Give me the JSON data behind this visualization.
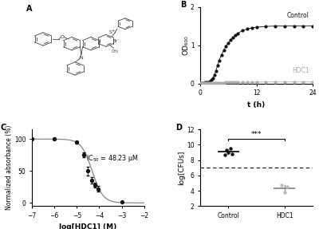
{
  "panelB": {
    "control_label": "Control",
    "hdc1_label": "HDC1",
    "xlabel": "t (h)",
    "ylabel": "OD₆₀₀",
    "xlim": [
      0,
      24
    ],
    "ylim": [
      0,
      2.0
    ],
    "yticks": [
      0.0,
      1.0,
      2.0
    ],
    "xticks": [
      0,
      12,
      24
    ],
    "control_color": "#111111",
    "hdc1_color": "#aaaaaa",
    "time_points": [
      0,
      0.33,
      0.66,
      1.0,
      1.33,
      1.66,
      2.0,
      2.33,
      2.66,
      3.0,
      3.33,
      3.66,
      4.0,
      4.5,
      5.0,
      5.5,
      6.0,
      6.5,
      7.0,
      7.5,
      8.0,
      9.0,
      10.0,
      11.0,
      12.0,
      14.0,
      16.0,
      18.0,
      20.0,
      22.0,
      24.0
    ],
    "control_od": [
      0.01,
      0.015,
      0.02,
      0.025,
      0.03,
      0.04,
      0.06,
      0.09,
      0.14,
      0.22,
      0.33,
      0.47,
      0.6,
      0.74,
      0.87,
      0.98,
      1.06,
      1.14,
      1.2,
      1.26,
      1.31,
      1.38,
      1.42,
      1.45,
      1.47,
      1.49,
      1.5,
      1.5,
      1.5,
      1.5,
      1.5
    ],
    "hdc1_od": [
      0.01,
      0.01,
      0.01,
      0.01,
      0.01,
      0.01,
      0.01,
      0.01,
      0.01,
      0.01,
      0.01,
      0.015,
      0.015,
      0.02,
      0.02,
      0.025,
      0.025,
      0.025,
      0.03,
      0.03,
      0.03,
      0.03,
      0.03,
      0.035,
      0.035,
      0.04,
      0.04,
      0.04,
      0.04,
      0.04,
      0.04
    ]
  },
  "panelC": {
    "xlabel": "log[HDC1] (M)",
    "ylabel": "Normalized absorbance (%)",
    "xlim": [
      -7,
      -2
    ],
    "ylim": [
      -5,
      115
    ],
    "yticks": [
      0,
      50,
      100
    ],
    "xticks": [
      -7,
      -6,
      -5,
      -4,
      -3,
      -2
    ],
    "ic50_text": "IC$_{50}$ = 48.23 μM",
    "ic50_log": -4.317,
    "hill": 1.8,
    "curve_color": "#888888",
    "point_color": "#111111",
    "xdata": [
      -7.0,
      -6.0,
      -5.0,
      -4.7,
      -4.52,
      -4.35,
      -4.2,
      -4.05,
      -3.0
    ],
    "ydata": [
      100,
      100,
      95,
      75,
      50,
      35,
      28,
      22,
      1
    ],
    "yerr": [
      1,
      1,
      2,
      4,
      7,
      5,
      4,
      4,
      1
    ]
  },
  "panelD": {
    "xlabel_control": "Control",
    "xlabel_hdc1": "HDC1",
    "ylabel": "log[CFUs]",
    "ylim": [
      2,
      12
    ],
    "yticks": [
      2,
      4,
      6,
      8,
      10,
      12
    ],
    "dashed_line_y": 7.0,
    "control_points": [
      9.3,
      9.5,
      9.0,
      8.7,
      8.85
    ],
    "control_mean_low": [
      8.6,
      8.7
    ],
    "hdc1_points": [
      4.7,
      4.5,
      3.8
    ],
    "control_color": "#111111",
    "hdc1_color": "#bbbbbb",
    "significance": "***"
  }
}
